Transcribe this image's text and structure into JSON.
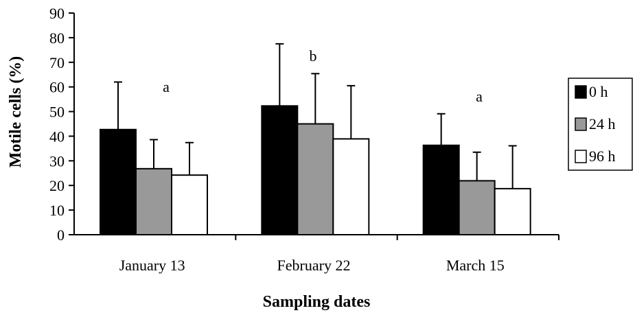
{
  "chart_data": {
    "type": "bar",
    "xlabel": "Sampling dates",
    "ylabel": "Motile cells (%)",
    "ylim": [
      0,
      90
    ],
    "yticks": [
      0,
      10,
      20,
      30,
      40,
      50,
      60,
      70,
      80,
      90
    ],
    "categories": [
      "January 13",
      "February 22",
      "March 15"
    ],
    "series": [
      {
        "name": "0 h",
        "color": "#000000",
        "values": [
          42.7,
          52.3,
          36.3
        ],
        "error": [
          19.3,
          25.2,
          12.8
        ]
      },
      {
        "name": "24 h",
        "color": "#999999",
        "values": [
          26.8,
          45.0,
          21.9
        ],
        "error": [
          11.8,
          20.4,
          11.6
        ]
      },
      {
        "name": "96 h",
        "color": "#ffffff",
        "values": [
          24.2,
          38.9,
          18.7
        ],
        "error": [
          13.2,
          21.6,
          17.4
        ]
      }
    ],
    "annotations": [
      "a",
      "b",
      "a"
    ],
    "legend_position": "right",
    "grid": false
  }
}
